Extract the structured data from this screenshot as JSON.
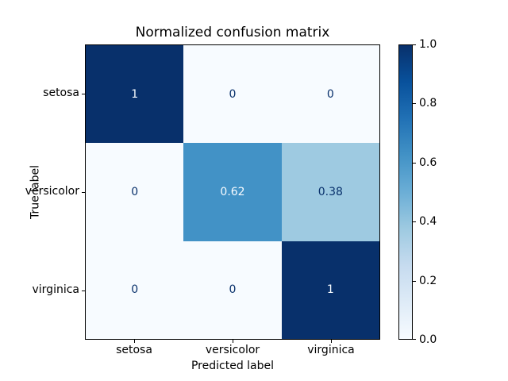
{
  "figure": {
    "background": "#ffffff"
  },
  "chart_data": {
    "type": "heatmap",
    "title": "Normalized confusion matrix",
    "xlabel": "Predicted label",
    "ylabel": "True label",
    "x_tick_labels": [
      "setosa",
      "versicolor",
      "virginica"
    ],
    "y_tick_labels": [
      "setosa",
      "versicolor",
      "virginica"
    ],
    "matrix": [
      [
        1,
        0,
        0
      ],
      [
        0,
        0.62,
        0.38
      ],
      [
        0,
        0,
        1
      ]
    ],
    "cell_labels": [
      [
        "1",
        "0",
        "0"
      ],
      [
        "0",
        "0.62",
        "0.38"
      ],
      [
        "0",
        "0",
        "1"
      ]
    ],
    "cell_colors": [
      [
        "#08306b",
        "#f7fbff",
        "#f7fbff"
      ],
      [
        "#f7fbff",
        "#4292c6",
        "#9ecae1"
      ],
      [
        "#f7fbff",
        "#f7fbff",
        "#08306b"
      ]
    ],
    "cell_text_colors": [
      [
        "#f7fbff",
        "#08306b",
        "#08306b"
      ],
      [
        "#08306b",
        "#f7fbff",
        "#08306b"
      ],
      [
        "#08306b",
        "#08306b",
        "#f7fbff"
      ]
    ],
    "colormap": "Blues",
    "vmin": 0.0,
    "vmax": 1.0,
    "grid": false,
    "colorbar": {
      "position": "right",
      "ticks": [
        1.0,
        0.8,
        0.6,
        0.4,
        0.2,
        0.0
      ],
      "tick_labels": [
        "1.0",
        "0.8",
        "0.6",
        "0.4",
        "0.2",
        "0.0"
      ],
      "gradient_stops_top_to_bottom": [
        "#08306b",
        "#08519c",
        "#2171b5",
        "#4292c6",
        "#6baed6",
        "#9ecae1",
        "#c6dbef",
        "#deebf7",
        "#f7fbff"
      ]
    }
  }
}
